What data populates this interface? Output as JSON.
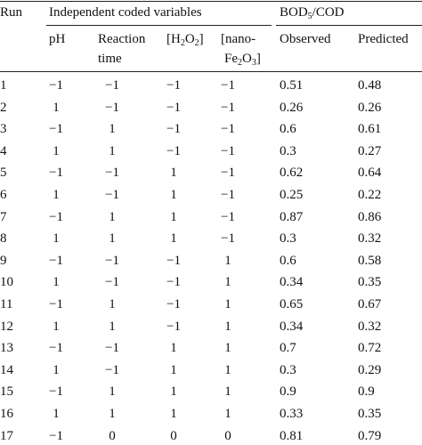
{
  "table": {
    "header": {
      "run": "Run",
      "group": "Independent coded variables",
      "response": [
        "BOD",
        "5",
        "/COD"
      ],
      "columns": {
        "ph": "pH",
        "reaction_time": [
          "Reaction",
          "time"
        ],
        "h2o2": [
          "[H",
          "2",
          "O",
          "2",
          "]"
        ],
        "nano": [
          "[nano-",
          "Fe",
          "2",
          "O",
          "3",
          "]"
        ],
        "observed": "Observed",
        "predicted": "Predicted"
      }
    },
    "rows": [
      [
        "1",
        "−1",
        "−1",
        "−1",
        "−1",
        "0.51",
        "0.48"
      ],
      [
        "2",
        "1",
        "−1",
        "−1",
        "−1",
        "0.26",
        "0.26"
      ],
      [
        "3",
        "−1",
        "1",
        "−1",
        "−1",
        "0.6",
        "0.61"
      ],
      [
        "4",
        "1",
        "1",
        "−1",
        "−1",
        "0.3",
        "0.27"
      ],
      [
        "5",
        "−1",
        "−1",
        "1",
        "−1",
        "0.62",
        "0.64"
      ],
      [
        "6",
        "1",
        "−1",
        "1",
        "−1",
        "0.25",
        "0.22"
      ],
      [
        "7",
        "−1",
        "1",
        "1",
        "−1",
        "0.87",
        "0.86"
      ],
      [
        "8",
        "1",
        "1",
        "1",
        "−1",
        "0.3",
        "0.32"
      ],
      [
        "9",
        "−1",
        "−1",
        "−1",
        "1",
        "0.6",
        "0.58"
      ],
      [
        "10",
        "1",
        "−1",
        "−1",
        "1",
        "0.34",
        "0.35"
      ],
      [
        "11",
        "−1",
        "1",
        "−1",
        "1",
        "0.65",
        "0.67"
      ],
      [
        "12",
        "1",
        "1",
        "−1",
        "1",
        "0.34",
        "0.32"
      ],
      [
        "13",
        "−1",
        "−1",
        "1",
        "1",
        "0.7",
        "0.72"
      ],
      [
        "14",
        "1",
        "−1",
        "1",
        "1",
        "0.3",
        "0.29"
      ],
      [
        "15",
        "−1",
        "1",
        "1",
        "1",
        "0.9",
        "0.9"
      ],
      [
        "16",
        "1",
        "1",
        "1",
        "1",
        "0.33",
        "0.35"
      ],
      [
        "17",
        "−1",
        "0",
        "0",
        "0",
        "0.81",
        "0.79"
      ]
    ]
  }
}
